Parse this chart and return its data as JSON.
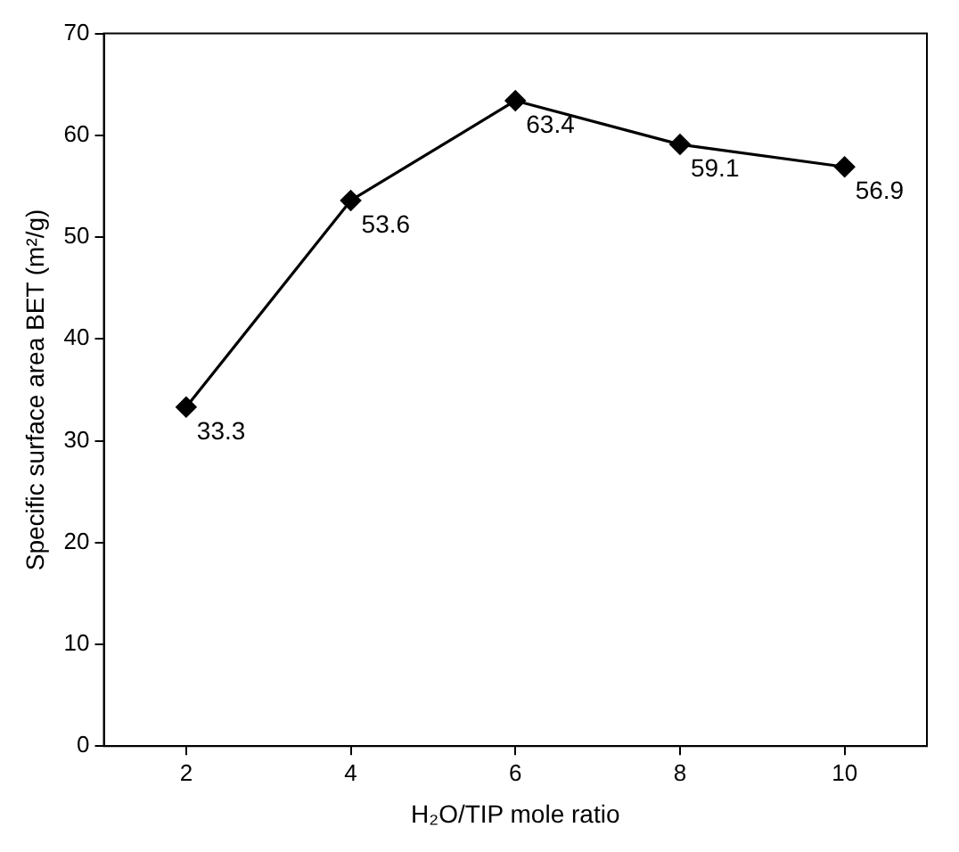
{
  "chart_data": {
    "type": "line",
    "xlabel": "H₂O/TIP mole ratio",
    "ylabel": "Specific surface area BET (m²/g)",
    "categories": [
      "2",
      "4",
      "6",
      "8",
      "10"
    ],
    "series": [
      {
        "color": "#000000",
        "values": [
          33.3,
          53.6,
          63.4,
          59.1,
          56.9
        ]
      }
    ],
    "ylim": [
      0,
      70
    ],
    "yticks": [
      0,
      10,
      20,
      30,
      40,
      50,
      60,
      70
    ],
    "grid": false,
    "legend": false,
    "marker": "diamond",
    "line_style": "solid",
    "data_labels": true
  }
}
